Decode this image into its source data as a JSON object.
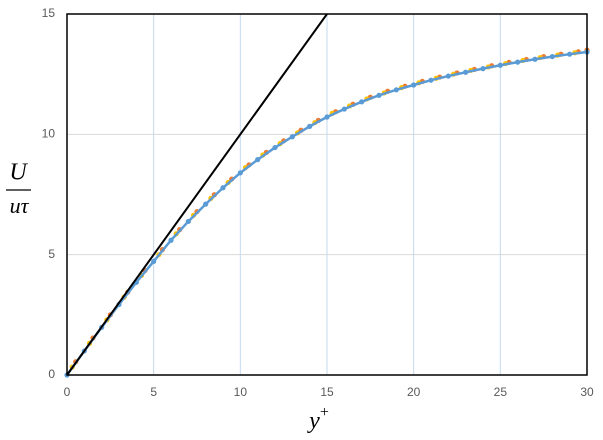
{
  "chart_data": {
    "type": "line",
    "xlabel": {
      "base": "y",
      "sup": "+"
    },
    "ylabel": {
      "numerator": "U",
      "denominator": "uτ"
    },
    "xlim": [
      0,
      30
    ],
    "xticks": [
      0,
      5,
      10,
      15,
      20,
      25,
      30
    ],
    "ylim": [
      0,
      15
    ],
    "yticks": [
      0,
      5,
      10,
      15
    ],
    "grid": true,
    "series": [
      {
        "color": "#ed7d31",
        "line": false,
        "markers": true,
        "x": [
          0.5,
          1.5,
          2.5,
          3.5,
          4.5,
          5.5,
          6.5,
          7.5,
          8.5,
          9.5,
          10.5,
          11.5,
          12.5,
          13.5,
          14.5,
          15.5,
          16.5,
          17.5,
          18.5,
          19.5,
          20.5,
          21.5,
          22.5,
          23.5,
          24.5,
          25.5,
          26.5,
          27.5,
          28.5,
          29.5,
          30
        ],
        "values": [
          0.55,
          1.54,
          2.5,
          3.44,
          4.34,
          5.21,
          6.04,
          6.79,
          7.49,
          8.14,
          8.73,
          9.25,
          9.73,
          10.17,
          10.58,
          10.94,
          11.25,
          11.54,
          11.79,
          12.0,
          12.2,
          12.38,
          12.55,
          12.7,
          12.85,
          12.99,
          13.11,
          13.23,
          13.33,
          13.43,
          13.5
        ]
      },
      {
        "color": "#ffc000",
        "line": false,
        "markers": true,
        "x": [
          0.3,
          1.3,
          2.3,
          3.3,
          4.3,
          5.3,
          6.3,
          7.3,
          8.3,
          9.3,
          10.3,
          11.3,
          12.3,
          13.3,
          14.3,
          15.3,
          16.3,
          17.3,
          18.3,
          19.3,
          20.3,
          21.3,
          22.3,
          23.3,
          24.3,
          25.3,
          26.3,
          27.3,
          28.3,
          29.3
        ],
        "values": [
          0.33,
          1.32,
          2.29,
          3.24,
          4.14,
          5.0,
          5.87,
          6.64,
          7.34,
          8.0,
          8.62,
          9.14,
          9.62,
          10.06,
          10.49,
          10.87,
          11.18,
          11.47,
          11.72,
          11.94,
          12.14,
          12.33,
          12.5,
          12.66,
          12.8,
          12.94,
          13.07,
          13.19,
          13.29,
          13.39
        ]
      },
      {
        "color": "#5b9bd5",
        "line": true,
        "markers": true,
        "x": [
          0,
          1,
          2,
          3,
          4,
          5,
          6,
          7,
          8,
          9,
          10,
          11,
          12,
          13,
          14,
          15,
          16,
          17,
          18,
          19,
          20,
          21,
          22,
          23,
          24,
          25,
          26,
          27,
          28,
          29,
          30
        ],
        "values": [
          0,
          1.0,
          1.98,
          2.93,
          3.85,
          4.72,
          5.6,
          6.38,
          7.1,
          7.78,
          8.4,
          8.95,
          9.45,
          9.9,
          10.33,
          10.72,
          11.05,
          11.35,
          11.62,
          11.85,
          12.05,
          12.25,
          12.42,
          12.58,
          12.73,
          12.87,
          13.0,
          13.12,
          13.23,
          13.33,
          13.42
        ]
      },
      {
        "color": "#000000",
        "line": true,
        "markers": false,
        "x": [
          0,
          15
        ],
        "values": [
          0,
          15
        ]
      }
    ]
  }
}
